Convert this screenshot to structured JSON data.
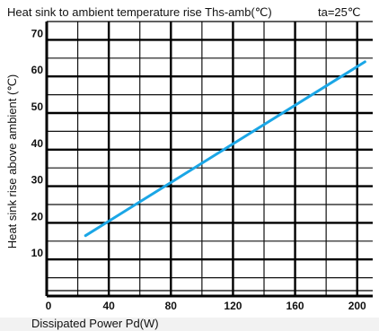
{
  "chart_data": {
    "type": "line",
    "title": "Heat sink to ambient temperature rise Ths-amb(℃)",
    "subtitle": "ta=25℃",
    "xlabel": "Dissipated Power Pd(W)",
    "ylabel": "Heat sink rise above ambient (℃)",
    "xlim": [
      0,
      210
    ],
    "ylim": [
      0,
      75
    ],
    "xticks": [
      0,
      40,
      80,
      120,
      160,
      200
    ],
    "yticks": [
      10,
      20,
      30,
      40,
      50,
      60,
      70
    ],
    "grid": true,
    "series": [
      {
        "color": "#1aa6e6",
        "x": [
          25,
          205
        ],
        "y": [
          16.5,
          64
        ]
      }
    ]
  }
}
